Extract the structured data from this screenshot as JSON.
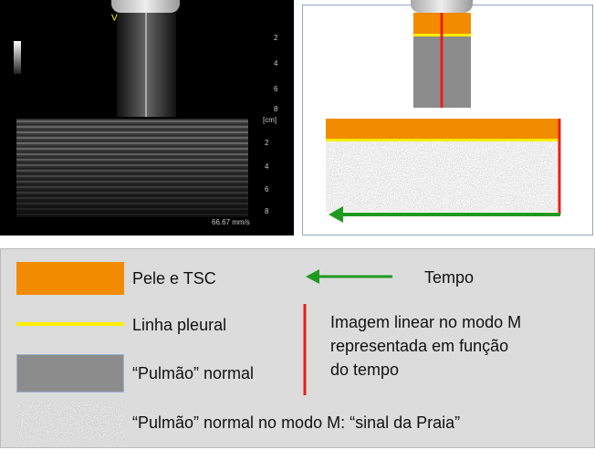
{
  "ultrasound": {
    "mode_label": "V",
    "upper_scale": [
      "2",
      "4",
      "6",
      "8"
    ],
    "unit": "[cm]",
    "lower_scale": [
      "2",
      "4",
      "6",
      "8"
    ],
    "sweep_speed": "66.67 mm/s"
  },
  "legend": {
    "skin": "Pele e TSC",
    "pleural_line": "Linha pleural",
    "lung": "“Pulmão” normal",
    "mmode_lung": "“Pulmão” normal no modo M: “sinal da Praia”",
    "time": "Tempo",
    "mmode_line": [
      "Imagem linear no modo M",
      "representada em função",
      "do tempo"
    ]
  }
}
